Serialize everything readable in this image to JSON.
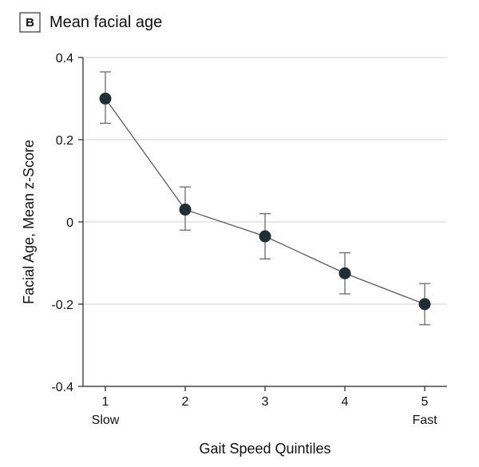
{
  "panel_label": "B",
  "chart_data": {
    "type": "line",
    "title": "Mean facial age",
    "xlabel": "Gait Speed Quintiles",
    "ylabel": "Facial Age, Mean z-Score",
    "categories": [
      "1",
      "2",
      "3",
      "4",
      "5"
    ],
    "category_sublabels": [
      "Slow",
      "",
      "",
      "",
      "Fast"
    ],
    "ylim": [
      -0.4,
      0.4
    ],
    "yticks": [
      0.4,
      0.2,
      0,
      -0.2,
      -0.4
    ],
    "ytick_labels": [
      "0.4",
      "0.2",
      "0",
      "-0.2",
      "-0.4"
    ],
    "grid": true,
    "series": [
      {
        "name": "Mean facial age",
        "values": [
          0.3,
          0.03,
          -0.035,
          -0.125,
          -0.2
        ],
        "error_low": [
          0.24,
          -0.02,
          -0.09,
          -0.175,
          -0.25
        ],
        "error_high": [
          0.365,
          0.085,
          0.02,
          -0.075,
          -0.15
        ]
      }
    ],
    "colors": {
      "marker": "#1f2f33",
      "line": "#5b5b5b",
      "errorbar": "#6a6a6a",
      "grid": "#d0d0d0"
    }
  }
}
